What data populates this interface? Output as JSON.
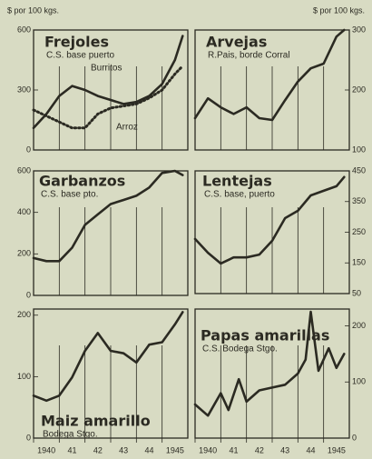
{
  "chart_data": [
    {
      "type": "line",
      "title": "Frejoles",
      "subtitle": "C.S. base puerto",
      "ylabel": "$ por 100 kgs.",
      "xlim": [
        1940,
        1946
      ],
      "xgrid": [
        1941,
        1942,
        1943,
        1944,
        1945
      ],
      "ylim": [
        0,
        600
      ],
      "yticks": [
        0,
        300,
        600
      ],
      "axis_side": "left",
      "series": [
        {
          "name": "Burritos",
          "color": "#2b2a22",
          "dash": "solid",
          "x": [
            1940,
            1940.5,
            1941,
            1941.5,
            1942,
            1942.5,
            1943,
            1943.5,
            1944,
            1944.5,
            1945,
            1945.5,
            1945.8
          ],
          "values": [
            110,
            180,
            270,
            320,
            300,
            270,
            250,
            230,
            240,
            270,
            330,
            450,
            570
          ]
        },
        {
          "name": "Arroz",
          "color": "#2b2a22",
          "dash": "dotted",
          "x": [
            1940,
            1940.5,
            1941,
            1941.5,
            1942,
            1942.5,
            1943,
            1943.5,
            1944,
            1944.5,
            1945,
            1945.5,
            1945.8
          ],
          "values": [
            200,
            170,
            140,
            110,
            110,
            180,
            210,
            220,
            230,
            260,
            300,
            380,
            420
          ]
        }
      ]
    },
    {
      "type": "line",
      "title": "Arvejas",
      "subtitle": "R.Pais, borde Corral",
      "ylabel": "$ por 100 kgs.",
      "xlim": [
        1940,
        1946
      ],
      "xgrid": [
        1941,
        1942,
        1943,
        1944,
        1945
      ],
      "ylim": [
        100,
        300
      ],
      "yticks": [
        100,
        200,
        300
      ],
      "axis_side": "right",
      "series": [
        {
          "color": "#2b2a22",
          "dash": "solid",
          "x": [
            1940,
            1940.5,
            1941,
            1941.5,
            1942,
            1942.5,
            1943,
            1943.5,
            1944,
            1944.5,
            1945,
            1945.5,
            1945.8
          ],
          "values": [
            153,
            186,
            171,
            160,
            171,
            153,
            150,
            183,
            214,
            236,
            244,
            289,
            300
          ]
        }
      ]
    },
    {
      "type": "line",
      "title": "Garbanzos",
      "subtitle": "C.S. base pto.",
      "xlim": [
        1940,
        1946
      ],
      "xgrid": [
        1941,
        1942,
        1943,
        1944,
        1945
      ],
      "ylim": [
        0,
        600
      ],
      "yticks": [
        0,
        200,
        400,
        600
      ],
      "axis_side": "left",
      "series": [
        {
          "color": "#2b2a22",
          "dash": "solid",
          "x": [
            1940,
            1940.5,
            1941,
            1941.5,
            1942,
            1942.5,
            1943,
            1943.5,
            1944,
            1944.5,
            1945,
            1945.5,
            1945.8
          ],
          "values": [
            180,
            165,
            165,
            230,
            340,
            390,
            440,
            460,
            480,
            520,
            590,
            600,
            580
          ]
        }
      ]
    },
    {
      "type": "line",
      "title": "Lentejas",
      "subtitle": "C.S. base, puerto",
      "xlim": [
        1940,
        1946
      ],
      "xgrid": [
        1941,
        1942,
        1943,
        1944,
        1945
      ],
      "ylim": [
        50,
        450
      ],
      "yticks": [
        50,
        150,
        250,
        350,
        450
      ],
      "axis_side": "right",
      "series": [
        {
          "color": "#2b2a22",
          "dash": "solid",
          "x": [
            1940,
            1940.5,
            1941,
            1941.5,
            1942,
            1942.5,
            1943,
            1943.5,
            1944,
            1944.5,
            1945,
            1945.5,
            1945.8
          ],
          "values": [
            228,
            183,
            148,
            168,
            168,
            177,
            222,
            296,
            320,
            370,
            385,
            400,
            430
          ]
        }
      ]
    },
    {
      "type": "line",
      "title": "Maiz amarillo",
      "subtitle": "Bodega Stgo.",
      "xlim": [
        1940,
        1946
      ],
      "xgrid": [
        1941,
        1942,
        1943,
        1944,
        1945
      ],
      "xticks": [
        {
          "value": 1940,
          "label": "1940"
        },
        {
          "value": 1941,
          "label": "41"
        },
        {
          "value": 1942,
          "label": "42"
        },
        {
          "value": 1943,
          "label": "43"
        },
        {
          "value": 1944,
          "label": "44"
        },
        {
          "value": 1945,
          "label": "1945"
        }
      ],
      "ylim": [
        0,
        210
      ],
      "yticks": [
        0,
        100,
        200
      ],
      "axis_side": "left",
      "series": [
        {
          "color": "#2b2a22",
          "dash": "solid",
          "x": [
            1940,
            1940.5,
            1941,
            1941.5,
            1942,
            1942.5,
            1943,
            1943.5,
            1944,
            1944.5,
            1945,
            1945.5,
            1945.8
          ],
          "values": [
            69,
            61,
            69,
            99,
            142,
            171,
            142,
            138,
            123,
            152,
            156,
            185,
            205
          ]
        }
      ]
    },
    {
      "type": "line",
      "title": "Papas amarillas",
      "subtitle": "C.S. Bodega Stgo.",
      "xlim": [
        1940,
        1946
      ],
      "xgrid": [
        1941,
        1942,
        1943,
        1944,
        1945
      ],
      "xticks": [
        {
          "value": 1940,
          "label": "1940"
        },
        {
          "value": 1941,
          "label": "41"
        },
        {
          "value": 1942,
          "label": "42"
        },
        {
          "value": 1943,
          "label": "43"
        },
        {
          "value": 1944,
          "label": "44"
        },
        {
          "value": 1945,
          "label": "1945"
        }
      ],
      "ylim": [
        0,
        230
      ],
      "yticks": [
        0,
        100,
        200
      ],
      "axis_side": "right",
      "series": [
        {
          "color": "#2b2a22",
          "dash": "solid",
          "x": [
            1940,
            1940.5,
            1941,
            1941.3,
            1941.7,
            1942,
            1942.5,
            1943,
            1943.5,
            1944,
            1944.3,
            1944.5,
            1944.8,
            1945.2,
            1945.5,
            1945.8
          ],
          "values": [
            60,
            40,
            80,
            50,
            105,
            65,
            85,
            90,
            95,
            115,
            140,
            225,
            120,
            160,
            125,
            150
          ]
        }
      ]
    }
  ]
}
